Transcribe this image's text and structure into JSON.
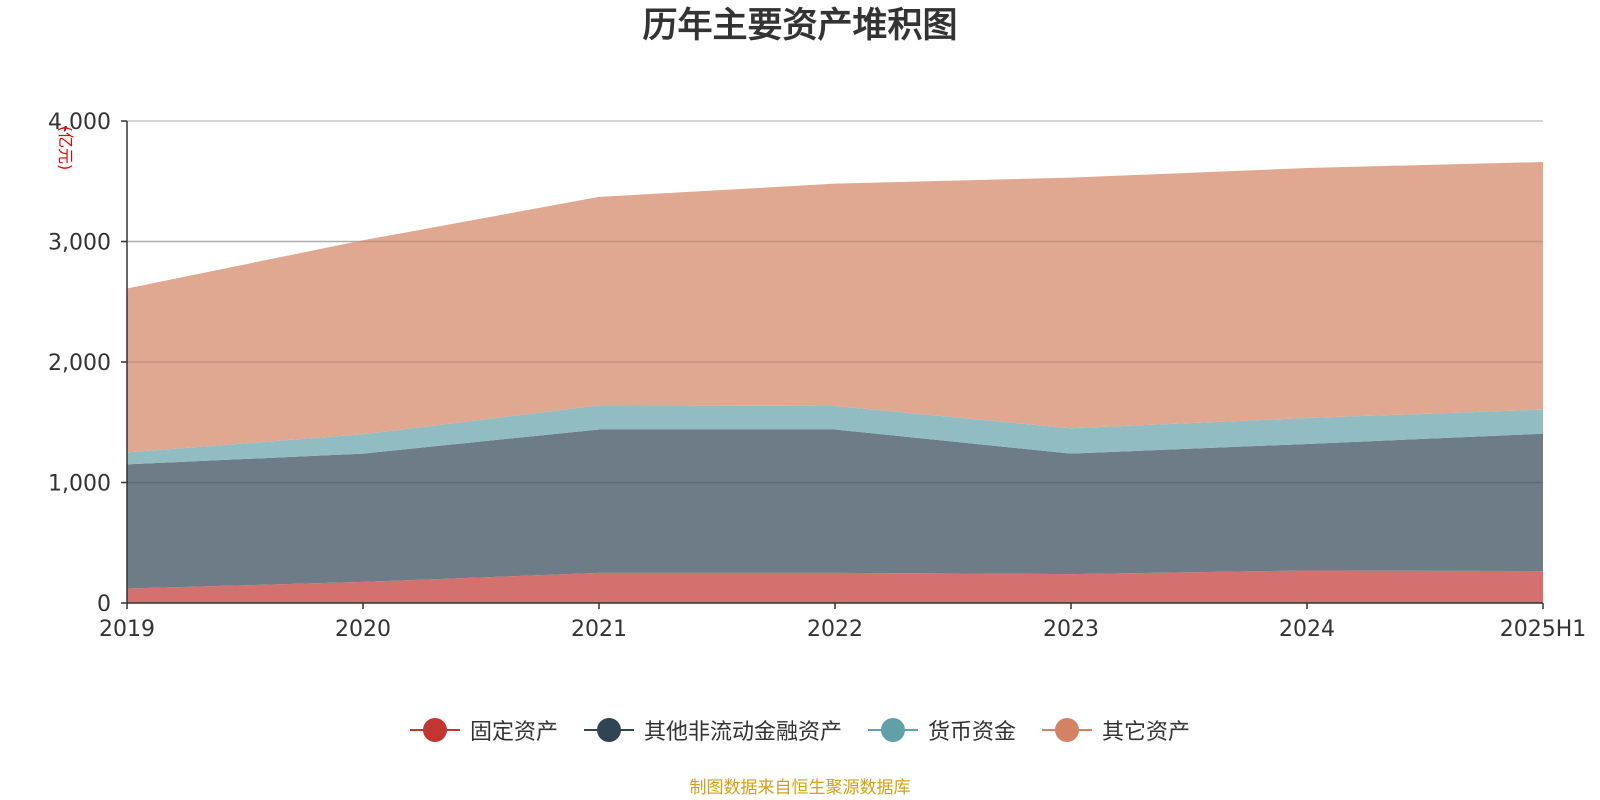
{
  "chart_data": {
    "type": "area",
    "stacked": true,
    "title": "历年主要资产堆积图",
    "unit_label": "亿元",
    "x": [
      "2019",
      "2020",
      "2021",
      "2022",
      "2023",
      "2024",
      "2025H1"
    ],
    "ylim": [
      0,
      4000
    ],
    "yticks": [
      0,
      1000,
      2000,
      3000,
      4000
    ],
    "ytick_labels": [
      "0",
      "1,000",
      "2,000",
      "3,000",
      "4,000"
    ],
    "grid": true,
    "legend_position": "bottom",
    "series": [
      {
        "name": "固定资产",
        "color": "#c23531",
        "fill": "#d4716f",
        "values": [
          120,
          175,
          250,
          250,
          240,
          270,
          265
        ]
      },
      {
        "name": "其他非流动金融资产",
        "color": "#2f4554",
        "fill": "#6e7c87",
        "values": [
          1030,
          1065,
          1190,
          1190,
          1000,
          1050,
          1140
        ]
      },
      {
        "name": "货币资金",
        "color": "#61a0a8",
        "fill": "#90bcc2",
        "values": [
          100,
          160,
          200,
          195,
          210,
          215,
          200
        ]
      },
      {
        "name": "其它资产",
        "color": "#d48265",
        "fill": "#e0a891",
        "values": [
          1360,
          1610,
          1730,
          1845,
          2080,
          2075,
          2055
        ]
      }
    ]
  },
  "source_note": "制图数据来自恒生聚源数据库"
}
